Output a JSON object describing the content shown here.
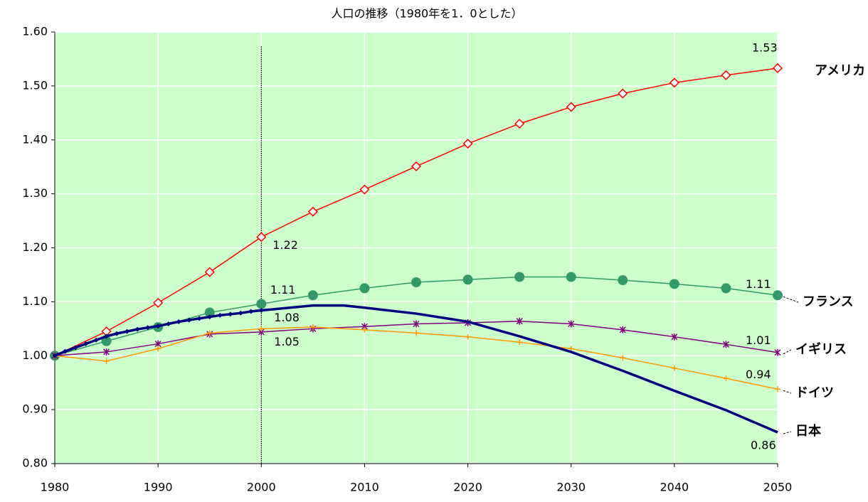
{
  "chart_data": {
    "type": "line",
    "title": "人口の推移（1980年を1．0とした）",
    "xlim": [
      1980,
      2050
    ],
    "xticks": [
      1980,
      1990,
      2000,
      2010,
      2020,
      2030,
      2040,
      2050
    ],
    "ylim": [
      0.8,
      1.6
    ],
    "yticks": [
      {
        "value": 0.8,
        "label": "0.80"
      },
      {
        "value": 0.9,
        "label": "0.90"
      },
      {
        "value": 1.0,
        "label": "1.00"
      },
      {
        "value": 1.1,
        "label": "1.10"
      },
      {
        "value": 1.2,
        "label": "1.20"
      },
      {
        "value": 1.3,
        "label": "1.30"
      },
      {
        "value": 1.4,
        "label": "1.40"
      },
      {
        "value": 1.5,
        "label": "1.50"
      },
      {
        "value": 1.6,
        "label": "1.60"
      }
    ],
    "grid": true,
    "background": "#ccffcc",
    "vline": 2000,
    "series": [
      {
        "name": "アメリカ",
        "color": "#ff0000",
        "marker": "diamond",
        "x": [
          1980,
          1985,
          1990,
          1995,
          2000,
          2005,
          2010,
          2015,
          2020,
          2025,
          2030,
          2035,
          2040,
          2045,
          2050
        ],
        "values": [
          1.0,
          1.045,
          1.098,
          1.155,
          1.22,
          1.267,
          1.308,
          1.351,
          1.393,
          1.43,
          1.461,
          1.486,
          1.506,
          1.52,
          1.533
        ],
        "value_labels": [
          null,
          null,
          null,
          null,
          "1.22",
          null,
          null,
          null,
          null,
          null,
          null,
          null,
          null,
          null,
          "1.53"
        ]
      },
      {
        "name": "フランス",
        "color": "#339966",
        "marker": "circle",
        "x": [
          1980,
          1985,
          1990,
          1995,
          2000,
          2005,
          2010,
          2015,
          2020,
          2025,
          2030,
          2035,
          2040,
          2045,
          2050
        ],
        "values": [
          1.0,
          1.027,
          1.053,
          1.08,
          1.096,
          1.112,
          1.125,
          1.136,
          1.141,
          1.146,
          1.146,
          1.14,
          1.133,
          1.125,
          1.112
        ],
        "value_labels": [
          null,
          null,
          null,
          null,
          null,
          "1.11",
          null,
          null,
          null,
          null,
          null,
          null,
          null,
          null,
          "1.11"
        ]
      },
      {
        "name": "イギリス",
        "color": "#800080",
        "marker": "asterisk",
        "x": [
          1980,
          1985,
          1990,
          1995,
          2000,
          2005,
          2010,
          2015,
          2020,
          2025,
          2030,
          2035,
          2040,
          2045,
          2050
        ],
        "values": [
          1.0,
          1.007,
          1.022,
          1.04,
          1.044,
          1.05,
          1.054,
          1.059,
          1.061,
          1.064,
          1.059,
          1.048,
          1.035,
          1.021,
          1.006
        ],
        "value_labels": [
          null,
          null,
          null,
          null,
          null,
          null,
          null,
          null,
          null,
          null,
          null,
          null,
          null,
          null,
          "1.01"
        ]
      },
      {
        "name": "ドイツ",
        "color": "#ff9900",
        "marker": "plus",
        "x": [
          1980,
          1985,
          1990,
          1995,
          2000,
          2005,
          2010,
          2015,
          2020,
          2025,
          2030,
          2035,
          2040,
          2045,
          2050
        ],
        "values": [
          1.0,
          0.99,
          1.013,
          1.042,
          1.05,
          1.053,
          1.048,
          1.042,
          1.035,
          1.025,
          1.013,
          0.996,
          0.977,
          0.958,
          0.938
        ],
        "value_labels": [
          null,
          null,
          null,
          null,
          "1.05",
          null,
          null,
          null,
          null,
          null,
          null,
          null,
          null,
          null,
          "0.94"
        ]
      },
      {
        "name": "日本",
        "color": "#000080",
        "marker": "small-diamond",
        "x": [
          1980,
          1981,
          1982,
          1983,
          1984,
          1985,
          1986,
          1987,
          1988,
          1989,
          1990,
          1991,
          1992,
          1993,
          1994,
          1995,
          1996,
          1997,
          1998,
          1999,
          2000,
          2005,
          2008,
          2010,
          2015,
          2020,
          2025,
          2030,
          2035,
          2040,
          2045,
          2050
        ],
        "values": [
          1.0,
          1.008,
          1.015,
          1.022,
          1.029,
          1.036,
          1.041,
          1.045,
          1.049,
          1.052,
          1.055,
          1.059,
          1.063,
          1.066,
          1.069,
          1.072,
          1.075,
          1.077,
          1.079,
          1.082,
          1.084,
          1.093,
          1.093,
          1.089,
          1.078,
          1.063,
          1.036,
          1.007,
          0.972,
          0.935,
          0.899,
          0.858
        ],
        "value_labels": [
          null,
          null,
          null,
          null,
          null,
          null,
          null,
          null,
          null,
          null,
          null,
          null,
          null,
          null,
          null,
          null,
          null,
          null,
          null,
          null,
          "1.08",
          null,
          null,
          null,
          null,
          null,
          null,
          null,
          null,
          null,
          null,
          "0.86"
        ]
      }
    ]
  }
}
